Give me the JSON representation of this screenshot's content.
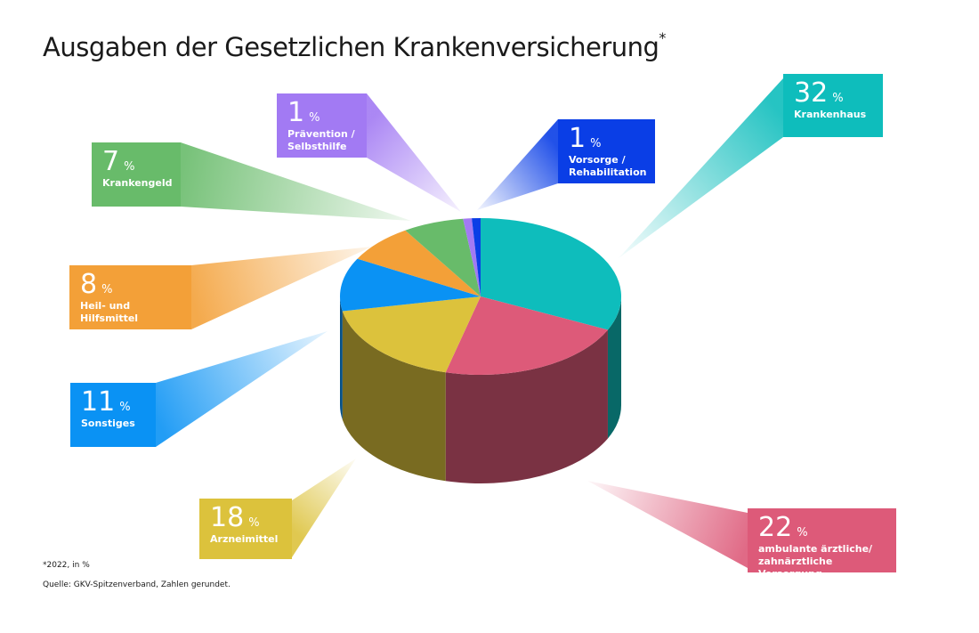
{
  "chart_data": {
    "type": "pie",
    "title": "Ausgaben der Gesetzlichen Krankenversicherung",
    "title_mark": "*",
    "unit": "%",
    "slices": [
      {
        "id": "krankenhaus",
        "label": "Krankenhaus",
        "value": 32,
        "color": "#0ebdbc"
      },
      {
        "id": "ambulant",
        "label": "ambulante ärztliche/ zahnärztliche Versorgung",
        "label_line1": "ambulante ärztliche/",
        "label_line2": "zahnärztliche Versorgung",
        "value": 22,
        "color": "#dd5a79"
      },
      {
        "id": "arzneimittel",
        "label": "Arzneimittel",
        "value": 18,
        "color": "#dcc23c"
      },
      {
        "id": "sonstiges",
        "label": "Sonstiges",
        "value": 11,
        "color": "#0a92f4"
      },
      {
        "id": "heil",
        "label": "Heil- und Hilfsmittel",
        "value": 8,
        "color": "#f3a038"
      },
      {
        "id": "krankengeld",
        "label": "Krankengeld",
        "value": 7,
        "color": "#68bb6a"
      },
      {
        "id": "praevention",
        "label": "Prävention / Selbsthilfe",
        "label_line1": "Prävention /",
        "label_line2": "Selbsthilfe",
        "value": 1,
        "color": "#a27af3"
      },
      {
        "id": "vorsorge",
        "label": "Vorsorge / Rehabilitation",
        "label_line1": "Vorsorge /",
        "label_line2": "Rehabilitation",
        "value": 1,
        "color": "#0a3ee6"
      }
    ],
    "footnote": "*2022, in %",
    "source": "Quelle: GKV-Spitzenverband, Zahlen gerundet."
  }
}
